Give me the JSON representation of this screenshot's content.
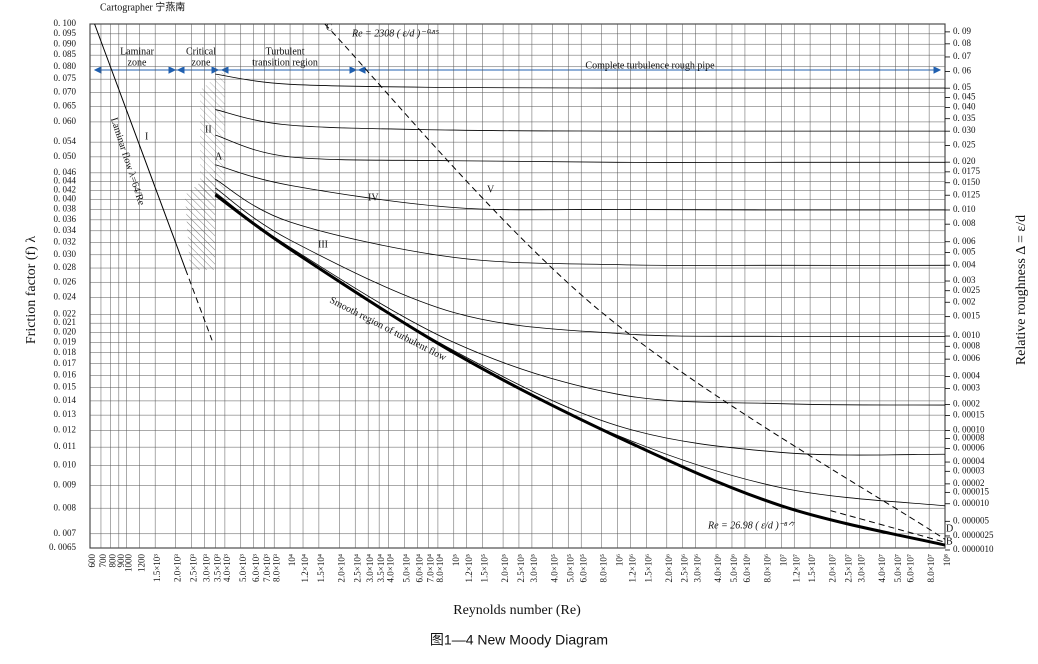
{
  "chart_data": {
    "type": "line",
    "title": "图1—4 New Moody Diagram",
    "xlabel": "Reynolds number (Re)",
    "ylabel": "Friction factor (f) λ",
    "y2label": "Relative roughness Δ = ε/d",
    "xscale": "log",
    "yscale": "log",
    "grid": true,
    "xlim": [
      600,
      100000000
    ],
    "ylim": [
      0.0065,
      0.1
    ],
    "y2lim": [
      1e-06,
      0.09
    ],
    "xticks": [
      600,
      700,
      800,
      900,
      1000,
      1200,
      {
        "value": 1500,
        "label": "1.5×10³"
      },
      {
        "value": 2000,
        "label": "2.0×10³"
      },
      {
        "value": 2500,
        "label": "2.5×10³"
      },
      {
        "value": 3000,
        "label": "3.0×10³"
      },
      {
        "value": 3500,
        "label": "3.5×10³"
      },
      {
        "value": 4000,
        "label": "4.0×10³"
      },
      {
        "value": 5000,
        "label": "5.0×10³"
      },
      {
        "value": 6000,
        "label": "6.0×10³"
      },
      {
        "value": 7000,
        "label": "7.0×10³"
      },
      {
        "value": 8000,
        "label": "8.0×10³"
      },
      {
        "value": 10000,
        "label": "10⁴"
      },
      {
        "value": 12000,
        "label": "1.2×10⁴"
      },
      {
        "value": 15000,
        "label": "1.5×10⁴"
      },
      {
        "value": 20000,
        "label": "2.0×10⁴"
      },
      {
        "value": 25000,
        "label": "2.5×10⁴"
      },
      {
        "value": 30000,
        "label": "3.0×10⁴"
      },
      {
        "value": 35000,
        "label": "3.5×10⁴"
      },
      {
        "value": 40000,
        "label": "4.0×10⁴"
      },
      {
        "value": 50000,
        "label": "5.0×10⁴"
      },
      {
        "value": 60000,
        "label": "6.0×10⁴"
      },
      {
        "value": 70000,
        "label": "7.0×10⁴"
      },
      {
        "value": 80000,
        "label": "8.0×10⁴"
      },
      {
        "value": 100000,
        "label": "10⁵"
      },
      {
        "value": 120000,
        "label": "1.2×10⁵"
      },
      {
        "value": 150000,
        "label": "1.5×10⁵"
      },
      {
        "value": 200000,
        "label": "2.0×10⁵"
      },
      {
        "value": 250000,
        "label": "2.5×10⁵"
      },
      {
        "value": 300000,
        "label": "3.0×10⁵"
      },
      {
        "value": 400000,
        "label": "4.0×10⁵"
      },
      {
        "value": 500000,
        "label": "5.0×10⁵"
      },
      {
        "value": 600000,
        "label": "6.0×10⁵"
      },
      {
        "value": 800000,
        "label": "8.0×10⁵"
      },
      {
        "value": 1000000,
        "label": "10⁶"
      },
      {
        "value": 1200000,
        "label": "1.2×10⁶"
      },
      {
        "value": 1500000,
        "label": "1.5×10⁶"
      },
      {
        "value": 2000000,
        "label": "2.0×10⁶"
      },
      {
        "value": 2500000,
        "label": "2.5×10⁶"
      },
      {
        "value": 3000000,
        "label": "3.0×10⁶"
      },
      {
        "value": 4000000,
        "label": "4.0×10⁶"
      },
      {
        "value": 5000000,
        "label": "5.0×10⁶"
      },
      {
        "value": 6000000,
        "label": "6.0×10⁶"
      },
      {
        "value": 8000000,
        "label": "8.0×10⁶"
      },
      {
        "value": 10000000,
        "label": "10⁷"
      },
      {
        "value": 12000000,
        "label": "1.2×10⁷"
      },
      {
        "value": 15000000,
        "label": "1.5×10⁷"
      },
      {
        "value": 20000000,
        "label": "2.0×10⁷"
      },
      {
        "value": 25000000,
        "label": "2.5×10⁷"
      },
      {
        "value": 30000000,
        "label": "3.0×10⁷"
      },
      {
        "value": 40000000,
        "label": "4.0×10⁷"
      },
      {
        "value": 50000000,
        "label": "5.0×10⁷"
      },
      {
        "value": 60000000,
        "label": "6.0×10⁷"
      },
      {
        "value": 80000000,
        "label": "8.0×10⁷"
      },
      {
        "value": 100000000,
        "label": "10⁸"
      }
    ],
    "yticks": [
      {
        "value": 0.1,
        "label": "0. 100"
      },
      {
        "value": 0.095,
        "label": "0. 095"
      },
      {
        "value": 0.09,
        "label": "0. 090"
      },
      {
        "value": 0.085,
        "label": "0. 085"
      },
      {
        "value": 0.08,
        "label": "0. 080"
      },
      {
        "value": 0.075,
        "label": "0. 075"
      },
      {
        "value": 0.07,
        "label": "0. 070"
      },
      {
        "value": 0.065,
        "label": "0. 065"
      },
      {
        "value": 0.06,
        "label": "0. 060"
      },
      {
        "value": 0.054,
        "label": "0. 054"
      },
      {
        "value": 0.05,
        "label": "0. 050"
      },
      {
        "value": 0.046,
        "label": "0. 046"
      },
      {
        "value": 0.044,
        "label": "0. 044"
      },
      {
        "value": 0.042,
        "label": "0. 042"
      },
      {
        "value": 0.04,
        "label": "0. 040"
      },
      {
        "value": 0.038,
        "label": "0. 038"
      },
      {
        "value": 0.036,
        "label": "0. 036"
      },
      {
        "value": 0.034,
        "label": "0. 034"
      },
      {
        "value": 0.032,
        "label": "0. 032"
      },
      {
        "value": 0.03,
        "label": "0. 030"
      },
      {
        "value": 0.028,
        "label": "0. 028"
      },
      {
        "value": 0.026,
        "label": "0. 026"
      },
      {
        "value": 0.024,
        "label": "0. 024"
      },
      {
        "value": 0.022,
        "label": "0. 022"
      },
      {
        "value": 0.021,
        "label": "0. 021"
      },
      {
        "value": 0.02,
        "label": "0. 020"
      },
      {
        "value": 0.019,
        "label": "0. 019"
      },
      {
        "value": 0.018,
        "label": "0. 018"
      },
      {
        "value": 0.017,
        "label": "0. 017"
      },
      {
        "value": 0.016,
        "label": "0. 016"
      },
      {
        "value": 0.015,
        "label": "0. 015"
      },
      {
        "value": 0.014,
        "label": "0. 014"
      },
      {
        "value": 0.013,
        "label": "0. 013"
      },
      {
        "value": 0.012,
        "label": "0. 012"
      },
      {
        "value": 0.011,
        "label": "0. 011"
      },
      {
        "value": 0.01,
        "label": "0. 010"
      },
      {
        "value": 0.009,
        "label": "0. 009"
      },
      {
        "value": 0.008,
        "label": "0. 008"
      },
      {
        "value": 0.007,
        "label": "0. 007"
      },
      {
        "value": 0.0065,
        "label": "0. 0065"
      }
    ],
    "y2ticks": [
      {
        "value": 0.09,
        "label": "0. 09"
      },
      {
        "value": 0.08,
        "label": "0. 08"
      },
      {
        "value": 0.07,
        "label": "0. 07"
      },
      {
        "value": 0.06,
        "label": "0. 06"
      },
      {
        "value": 0.05,
        "label": "0. 05"
      },
      {
        "value": 0.045,
        "label": "0. 045"
      },
      {
        "value": 0.04,
        "label": "0. 040"
      },
      {
        "value": 0.035,
        "label": "0. 035"
      },
      {
        "value": 0.03,
        "label": "0. 030"
      },
      {
        "value": 0.025,
        "label": "0. 025"
      },
      {
        "value": 0.02,
        "label": "0. 020"
      },
      {
        "value": 0.0175,
        "label": "0. 0175"
      },
      {
        "value": 0.015,
        "label": "0. 0150"
      },
      {
        "value": 0.0125,
        "label": "0. 0125"
      },
      {
        "value": 0.01,
        "label": "0. 010"
      },
      {
        "value": 0.008,
        "label": "0. 008"
      },
      {
        "value": 0.006,
        "label": "0. 006"
      },
      {
        "value": 0.005,
        "label": "0. 005"
      },
      {
        "value": 0.004,
        "label": "0. 004"
      },
      {
        "value": 0.003,
        "label": "0. 003"
      },
      {
        "value": 0.0025,
        "label": "0. 0025"
      },
      {
        "value": 0.002,
        "label": "0. 002"
      },
      {
        "value": 0.0015,
        "label": "0. 0015"
      },
      {
        "value": 0.001,
        "label": "0. 0010"
      },
      {
        "value": 0.0008,
        "label": "0. 0008"
      },
      {
        "value": 0.0006,
        "label": "0. 0006"
      },
      {
        "value": 0.0004,
        "label": "0. 0004"
      },
      {
        "value": 0.0003,
        "label": "0. 0003"
      },
      {
        "value": 0.0002,
        "label": "0. 0002"
      },
      {
        "value": 0.00015,
        "label": "0. 00015"
      },
      {
        "value": 0.0001,
        "label": "0. 00010"
      },
      {
        "value": 8e-05,
        "label": "0. 00008"
      },
      {
        "value": 6e-05,
        "label": "0. 00006"
      },
      {
        "value": 4e-05,
        "label": "0. 00004"
      },
      {
        "value": 3e-05,
        "label": "0. 00003"
      },
      {
        "value": 2e-05,
        "label": "0. 00002"
      },
      {
        "value": 1.5e-05,
        "label": "0. 000015"
      },
      {
        "value": 1e-05,
        "label": "0. 000010"
      },
      {
        "value": 5e-06,
        "label": "0. 000005"
      },
      {
        "value": 2.5e-06,
        "label": "0. 0000025"
      },
      {
        "value": 1e-06,
        "label": "0. 0000010"
      }
    ],
    "series": [
      {
        "color": "#000000",
        "line_width": 1,
        "x": [
          640,
          2300
        ],
        "values": [
          0.1,
          0.0278
        ]
      },
      {
        "color": "#000000",
        "line_width": 1,
        "dash": true,
        "x": [
          2300,
          3340
        ],
        "values": [
          0.0278,
          0.0192
        ]
      },
      {
        "color": "#000000",
        "line_width": 1,
        "dash": true,
        "x": [
          16300,
          780000,
          100000000
        ],
        "values": [
          0.1,
          0.0224,
          0.0068
        ]
      },
      {
        "color": "#000000",
        "line_width": 1,
        "dash": true,
        "x": [
          20000000,
          100000000
        ],
        "values": [
          0.0079,
          0.0067
        ]
      },
      {
        "color": "#000000",
        "line_width": 0.8,
        "x": [
          3500,
          10000,
          100000,
          1000000,
          10000000,
          100000000
        ],
        "values": [
          0.077,
          0.073,
          0.0718,
          0.0716,
          0.0716,
          0.0716
        ]
      },
      {
        "color": "#000000",
        "line_width": 0.8,
        "x": [
          3500,
          10000,
          100000,
          1000000,
          10000000,
          100000000
        ],
        "values": [
          0.064,
          0.059,
          0.0575,
          0.0572,
          0.0572,
          0.0572
        ]
      },
      {
        "color": "#000000",
        "line_width": 0.8,
        "x": [
          3500,
          10000,
          100000,
          1000000,
          10000000,
          100000000
        ],
        "values": [
          0.056,
          0.05,
          0.049,
          0.0486,
          0.0486,
          0.0486
        ]
      },
      {
        "color": "#000000",
        "line_width": 0.8,
        "x": [
          3500,
          10000,
          100000,
          1000000,
          10000000,
          100000000
        ],
        "values": [
          0.048,
          0.0431,
          0.0384,
          0.038,
          0.0379,
          0.0379
        ]
      },
      {
        "color": "#000000",
        "line_width": 0.8,
        "x": [
          3500,
          10000,
          100000,
          1000000,
          10000000,
          100000000
        ],
        "values": [
          0.0445,
          0.0356,
          0.0296,
          0.0285,
          0.0284,
          0.0284
        ]
      },
      {
        "color": "#000000",
        "line_width": 0.8,
        "x": [
          3500,
          10000,
          100000,
          1000000,
          10000000,
          100000000
        ],
        "values": [
          0.0425,
          0.0324,
          0.0222,
          0.0199,
          0.0196,
          0.0196
        ]
      },
      {
        "color": "#000000",
        "line_width": 0.8,
        "x": [
          3500,
          10000,
          100000,
          1000000,
          10000000,
          100000000
        ],
        "values": [
          0.0415,
          0.0312,
          0.019,
          0.0145,
          0.0138,
          0.0137
        ]
      },
      {
        "color": "#000000",
        "line_width": 0.8,
        "x": [
          3500,
          10000,
          100000,
          1000000,
          10000000,
          100000000
        ],
        "values": [
          0.0412,
          0.0309,
          0.0182,
          0.0123,
          0.0107,
          0.0106
        ]
      },
      {
        "color": "#000000",
        "line_width": 0.8,
        "x": [
          3500,
          10000,
          100000,
          1000000,
          10000000,
          100000000
        ],
        "values": [
          0.041,
          0.0309,
          0.018,
          0.0117,
          0.0089,
          0.0081
        ]
      },
      {
        "color": "#000000",
        "line_width": 3,
        "x": [
          3500,
          10000,
          100000,
          1000000,
          10000000,
          100000000
        ],
        "values": [
          0.041,
          0.0309,
          0.018,
          0.0116,
          0.0081,
          0.0066
        ]
      }
    ],
    "regions": [
      [
        "Laminar",
        "zone"
      ],
      [
        "Critical",
        "zone"
      ],
      [
        "Turbulent",
        "transition region"
      ],
      [
        "Complete turbulence rough pipe"
      ]
    ],
    "annotations": [
      "Cartographer 宁燕南",
      "C",
      "Re = 2308 ( ε/d )⁻⁰·⁸⁵",
      "Laminar flow λ=64/Re",
      "I",
      "II",
      "A",
      "III",
      "IV",
      "V",
      "Smooth region of turbulent flow",
      "Re = 26.98 ( ε/d )⁻⁸ᐟ⁷",
      "D",
      "B"
    ]
  }
}
